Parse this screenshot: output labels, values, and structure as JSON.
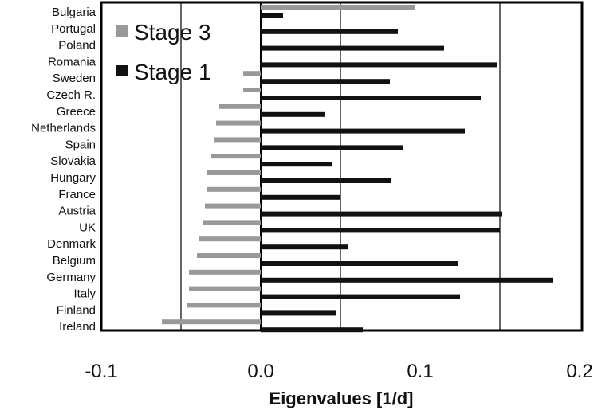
{
  "chart_data": {
    "type": "bar",
    "orientation": "horizontal",
    "categories": [
      "Bulgaria",
      "Portugal",
      "Poland",
      "Romania",
      "Sweden",
      "Czech R.",
      "Greece",
      "Netherlands",
      "Spain",
      "Slovakia",
      "Hungary",
      "France",
      "Austria",
      "UK",
      "Denmark",
      "Belgium",
      "Germany",
      "Italy",
      "Finland",
      "Ireland"
    ],
    "series": [
      {
        "name": "Stage 3",
        "color": "#999999",
        "values": [
          0.097,
          0,
          0,
          0,
          -0.011,
          -0.011,
          -0.026,
          -0.028,
          -0.029,
          -0.031,
          -0.034,
          -0.034,
          -0.035,
          -0.036,
          -0.039,
          -0.04,
          -0.045,
          -0.045,
          -0.046,
          -0.062
        ]
      },
      {
        "name": "Stage 1",
        "color": "#111111",
        "values": [
          0.014,
          0.086,
          0.115,
          0.148,
          0.081,
          0.138,
          0.04,
          0.128,
          0.089,
          0.045,
          0.082,
          0.05,
          0.151,
          0.15,
          0.055,
          0.124,
          0.183,
          0.125,
          0.047,
          0.064
        ]
      }
    ],
    "xlabel": "Eigenvalues [1/d]",
    "xlim": [
      -0.1,
      0.2
    ],
    "xticks": [
      -0.1,
      0.0,
      0.1,
      0.2
    ],
    "xtick_labels": [
      "-0.1",
      "0.0",
      "0.1",
      "0.2"
    ],
    "gridlines_x": [
      -0.05,
      0.05,
      0.15
    ],
    "legend_position": "top-left",
    "grid": true
  }
}
